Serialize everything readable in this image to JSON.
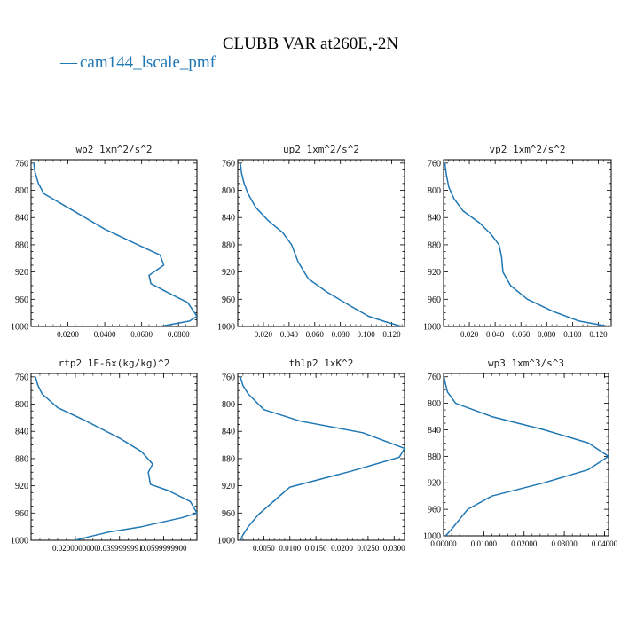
{
  "figure": {
    "title": "CLUBB VAR at260E,-2N",
    "legend": {
      "label": "cam144_lscale_pmf",
      "color": "#1f77b4",
      "line_glyph": "—"
    }
  },
  "chart_data": [
    {
      "type": "line",
      "title": "wp2  1xm^2/s^2",
      "ylim": [
        1000,
        755
      ],
      "y_inverted": true,
      "xlim": [
        0.0,
        0.09
      ],
      "xticks": [
        0.02,
        0.04,
        0.06,
        0.08
      ],
      "xtick_labels": [
        "0.0200",
        "0.0400",
        "0.0600",
        "0.0800"
      ],
      "yticks": [
        760,
        800,
        840,
        880,
        920,
        960,
        1000
      ],
      "series": [
        {
          "color": "#1f77b4",
          "x": [
            0.0015,
            0.002,
            0.004,
            0.007,
            0.021,
            0.04,
            0.058,
            0.07,
            0.072,
            0.064,
            0.065,
            0.074,
            0.085,
            0.09,
            0.086,
            0.07
          ],
          "y": [
            760,
            772,
            790,
            805,
            827,
            857,
            880,
            895,
            910,
            925,
            937,
            950,
            965,
            985,
            992,
            1000
          ]
        }
      ]
    },
    {
      "type": "line",
      "title": "up2  1xm^2/s^2",
      "ylim": [
        1000,
        755
      ],
      "y_inverted": true,
      "xlim": [
        0.0,
        0.13
      ],
      "xticks": [
        0.02,
        0.04,
        0.06,
        0.08,
        0.1,
        0.12
      ],
      "xtick_labels": [
        "0.020",
        "0.040",
        "0.060",
        "0.080",
        "0.100",
        "0.120"
      ],
      "yticks": [
        760,
        800,
        840,
        880,
        920,
        960,
        1000
      ],
      "series": [
        {
          "color": "#1f77b4",
          "x": [
            0.002,
            0.003,
            0.005,
            0.008,
            0.014,
            0.024,
            0.035,
            0.042,
            0.047,
            0.055,
            0.07,
            0.088,
            0.102,
            0.115,
            0.128
          ],
          "y": [
            760,
            775,
            790,
            805,
            825,
            845,
            862,
            880,
            905,
            930,
            950,
            970,
            985,
            993,
            1000
          ]
        }
      ]
    },
    {
      "type": "line",
      "title": "vp2  1xm^2/s^2",
      "ylim": [
        1000,
        755
      ],
      "y_inverted": true,
      "xlim": [
        0.0,
        0.13
      ],
      "xticks": [
        0.02,
        0.04,
        0.06,
        0.08,
        0.1,
        0.12
      ],
      "xtick_labels": [
        "0.020",
        "0.040",
        "0.060",
        "0.080",
        "0.100",
        "0.120"
      ],
      "yticks": [
        760,
        800,
        840,
        880,
        920,
        960,
        1000
      ],
      "series": [
        {
          "color": "#1f77b4",
          "x": [
            0.001,
            0.002,
            0.004,
            0.008,
            0.015,
            0.028,
            0.037,
            0.043,
            0.045,
            0.046,
            0.052,
            0.065,
            0.085,
            0.105,
            0.128
          ],
          "y": [
            760,
            775,
            795,
            812,
            830,
            848,
            865,
            880,
            898,
            920,
            940,
            960,
            978,
            992,
            1000
          ]
        }
      ]
    },
    {
      "type": "line",
      "title": "rtp2  1E-6x(kg/kg)^2",
      "ylim": [
        1000,
        755
      ],
      "y_inverted": true,
      "xlim": [
        0.0,
        0.075
      ],
      "xticks": [
        0.02,
        0.04,
        0.06
      ],
      "xtick_labels": [
        "0.0200000000",
        "0.0399999991",
        "0.0599999900"
      ],
      "yticks": [
        760,
        800,
        840,
        880,
        920,
        960,
        1000
      ],
      "series": [
        {
          "color": "#1f77b4",
          "x": [
            0.002,
            0.003,
            0.005,
            0.012,
            0.025,
            0.04,
            0.05,
            0.055,
            0.053,
            0.054,
            0.062,
            0.072,
            0.075,
            0.068,
            0.05,
            0.035,
            0.026,
            0.02
          ],
          "y": [
            760,
            772,
            785,
            805,
            825,
            850,
            870,
            888,
            900,
            918,
            927,
            943,
            960,
            967,
            980,
            988,
            995,
            1000
          ]
        }
      ]
    },
    {
      "type": "line",
      "title": "thlp2  1xK^2",
      "ylim": [
        1000,
        755
      ],
      "y_inverted": true,
      "xlim": [
        0.0,
        0.032
      ],
      "xticks": [
        0.005,
        0.01,
        0.015,
        0.02,
        0.025,
        0.03
      ],
      "xtick_labels": [
        "0.0050",
        "0.0100",
        "0.0150",
        "0.0200",
        "0.0250",
        "0.0300"
      ],
      "yticks": [
        760,
        800,
        840,
        880,
        920,
        960,
        1000
      ],
      "series": [
        {
          "color": "#1f77b4",
          "x": [
            0.0005,
            0.001,
            0.002,
            0.005,
            0.012,
            0.024,
            0.032,
            0.031,
            0.022,
            0.015,
            0.01,
            0.007,
            0.004,
            0.002,
            0.001,
            0.0005
          ],
          "y": [
            760,
            773,
            785,
            808,
            825,
            842,
            865,
            878,
            898,
            912,
            922,
            942,
            962,
            980,
            992,
            1000
          ]
        }
      ]
    },
    {
      "type": "line",
      "title": "wp3  1xm^3/s^3",
      "ylim": [
        1000,
        755
      ],
      "y_inverted": true,
      "xlim": [
        0.0,
        0.041
      ],
      "xticks": [
        0.0,
        0.01,
        0.02,
        0.03,
        0.04
      ],
      "xtick_labels": [
        "0.00000",
        "0.01000",
        "0.02000",
        "0.03000",
        "0.04000"
      ],
      "yticks": [
        760,
        800,
        840,
        880,
        920,
        960,
        1000
      ],
      "series": [
        {
          "color": "#1f77b4",
          "x": [
            0.0001,
            0.0005,
            0.001,
            0.003,
            0.012,
            0.025,
            0.036,
            0.041,
            0.036,
            0.025,
            0.012,
            0.006,
            0.004,
            0.002,
            0.0005
          ],
          "y": [
            760,
            772,
            783,
            800,
            820,
            840,
            860,
            880,
            900,
            920,
            940,
            960,
            975,
            990,
            1000
          ]
        }
      ]
    }
  ]
}
